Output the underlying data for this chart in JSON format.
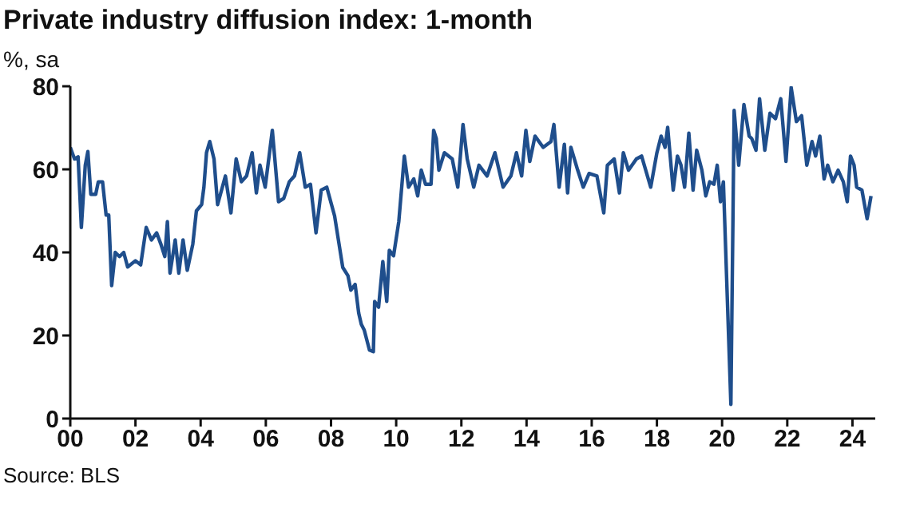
{
  "chart_data": {
    "type": "line",
    "title": "Private industry diffusion index: 1-month",
    "ylabel": "%, sa",
    "annotations": [
      "Source: BLS"
    ],
    "grid": false,
    "legend": false,
    "marker": "none",
    "line_style": "solid",
    "xlim": [
      2000,
      2024.7
    ],
    "ylim": [
      0,
      80
    ],
    "yticks": [
      0,
      20,
      40,
      60,
      80
    ],
    "xticks": [
      {
        "value": 2000,
        "label": "00"
      },
      {
        "value": 2002,
        "label": "02"
      },
      {
        "value": 2004,
        "label": "04"
      },
      {
        "value": 2006,
        "label": "06"
      },
      {
        "value": 2008,
        "label": "08"
      },
      {
        "value": 2010,
        "label": "10"
      },
      {
        "value": 2012,
        "label": "12"
      },
      {
        "value": 2014,
        "label": "14"
      },
      {
        "value": 2016,
        "label": "16"
      },
      {
        "value": 2018,
        "label": "18"
      },
      {
        "value": 2020,
        "label": "20"
      },
      {
        "value": 2022,
        "label": "22"
      },
      {
        "value": 2024,
        "label": "24"
      }
    ],
    "series": [
      {
        "color": "#1f4e8c",
        "x": [
          2000.0,
          2000.13,
          2000.24,
          2000.34,
          2000.46,
          2000.54,
          2000.63,
          2000.78,
          2000.86,
          2000.99,
          2001.1,
          2001.18,
          2001.27,
          2001.38,
          2001.51,
          2001.64,
          2001.76,
          2002.0,
          2002.16,
          2002.33,
          2002.49,
          2002.65,
          2002.78,
          2002.9,
          2002.98,
          2003.06,
          2003.22,
          2003.33,
          2003.46,
          2003.59,
          2003.76,
          2003.87,
          2004.03,
          2004.1,
          2004.18,
          2004.28,
          2004.41,
          2004.52,
          2004.76,
          2004.93,
          2005.09,
          2005.25,
          2005.41,
          2005.58,
          2005.71,
          2005.82,
          2005.98,
          2006.2,
          2006.39,
          2006.55,
          2006.72,
          2006.88,
          2007.04,
          2007.21,
          2007.37,
          2007.54,
          2007.7,
          2007.87,
          2008.11,
          2008.36,
          2008.52,
          2008.61,
          2008.74,
          2008.85,
          2008.93,
          2009.02,
          2009.18,
          2009.3,
          2009.34,
          2009.46,
          2009.59,
          2009.71,
          2009.79,
          2009.92,
          2010.08,
          2010.25,
          2010.38,
          2010.54,
          2010.66,
          2010.77,
          2010.9,
          2011.07,
          2011.15,
          2011.23,
          2011.31,
          2011.48,
          2011.72,
          2011.89,
          2012.05,
          2012.18,
          2012.38,
          2012.54,
          2012.79,
          2013.03,
          2013.28,
          2013.52,
          2013.69,
          2013.85,
          2013.98,
          2014.1,
          2014.26,
          2014.51,
          2014.75,
          2014.84,
          2015.0,
          2015.16,
          2015.26,
          2015.36,
          2015.57,
          2015.74,
          2015.92,
          2016.16,
          2016.37,
          2016.48,
          2016.69,
          2016.85,
          2016.97,
          2017.13,
          2017.37,
          2017.53,
          2017.81,
          2018.0,
          2018.13,
          2018.25,
          2018.33,
          2018.5,
          2018.63,
          2018.74,
          2018.85,
          2018.98,
          2019.11,
          2019.22,
          2019.38,
          2019.5,
          2019.62,
          2019.75,
          2019.85,
          2019.95,
          2020.04,
          2020.27,
          2020.37,
          2020.51,
          2020.67,
          2020.83,
          2020.91,
          2021.04,
          2021.15,
          2021.31,
          2021.47,
          2021.64,
          2021.8,
          2021.96,
          2022.12,
          2022.28,
          2022.44,
          2022.6,
          2022.76,
          2022.87,
          2023.0,
          2023.13,
          2023.24,
          2023.4,
          2023.56,
          2023.72,
          2023.84,
          2023.94,
          2024.05,
          2024.13,
          2024.29,
          2024.45,
          2024.57
        ],
        "values": [
          65.3,
          62.5,
          63,
          46,
          61,
          64.3,
          54,
          54,
          57,
          57,
          49,
          49,
          32,
          40,
          39,
          40,
          36.5,
          38,
          37,
          46,
          43,
          44.7,
          42,
          39,
          47.4,
          35,
          43,
          35,
          43,
          35.7,
          42,
          50,
          51.5,
          55.7,
          64,
          66.7,
          62.5,
          51.5,
          58.4,
          49.5,
          62.5,
          57,
          58.4,
          64,
          54.3,
          61,
          55.7,
          69.4,
          52.2,
          53,
          57,
          58.4,
          64,
          55.7,
          56.4,
          44.7,
          55,
          55.7,
          48.8,
          36.4,
          34.4,
          30.9,
          32.3,
          25.4,
          22.7,
          21.3,
          16.5,
          16.1,
          28.2,
          26.8,
          37.8,
          28.2,
          40.5,
          39.2,
          47.4,
          63.2,
          55.7,
          57.7,
          53.6,
          59.8,
          56.4,
          56.4,
          69.4,
          67.4,
          59.8,
          64,
          62.5,
          55.7,
          70.8,
          62.5,
          55.7,
          61,
          58.4,
          64,
          55.7,
          58.4,
          64,
          58.4,
          69.4,
          61.9,
          68,
          65.3,
          66.7,
          70.8,
          55.7,
          66,
          54.3,
          65.3,
          59.8,
          55.7,
          59,
          58.4,
          49.5,
          61,
          62.5,
          54.3,
          64,
          59.8,
          62.5,
          63.2,
          55.7,
          64,
          68,
          65.3,
          70.1,
          55,
          63.2,
          61,
          55.7,
          68.7,
          55,
          64.6,
          59.8,
          53.6,
          57,
          56.4,
          61,
          52.2,
          57,
          3.4,
          74.2,
          61,
          75.6,
          68,
          67.4,
          64.6,
          77,
          64.6,
          73.5,
          72.2,
          77,
          61.9,
          79.7,
          71.5,
          72.9,
          61,
          66.7,
          63.2,
          68,
          57.7,
          61,
          57,
          59.8,
          57,
          52.2,
          63.2,
          61,
          55.7,
          55,
          48.1,
          53.6
        ]
      }
    ]
  }
}
